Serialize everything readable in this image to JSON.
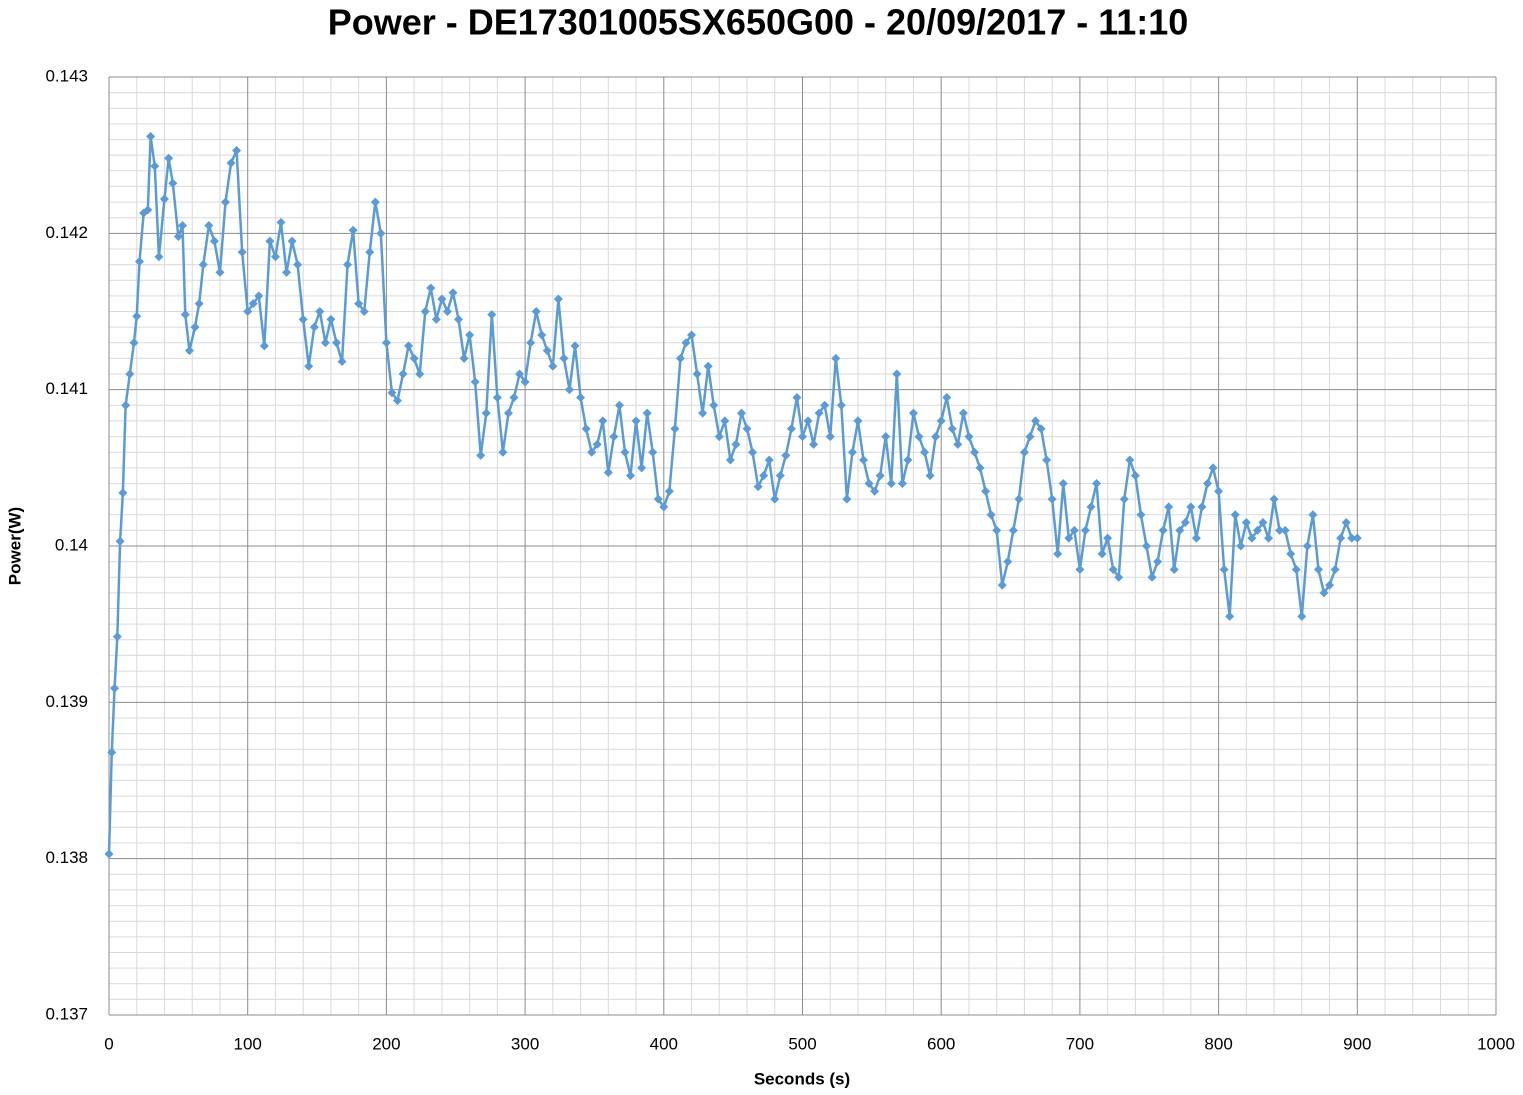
{
  "chart_data": {
    "type": "line",
    "title": "Power - DE17301005SX650G00 - 20/09/2017 - 11:10",
    "x_label": "Seconds (s)",
    "y_label": "Power(W)",
    "x": [
      0,
      2,
      4,
      6,
      8,
      10,
      12,
      15,
      18,
      20,
      22,
      25,
      28,
      30,
      33,
      36,
      40,
      43,
      46,
      50,
      53,
      55,
      58,
      62,
      65,
      68,
      72,
      76,
      80,
      84,
      88,
      92,
      96,
      100,
      104,
      108,
      112,
      116,
      120,
      124,
      128,
      132,
      136,
      140,
      144,
      148,
      152,
      156,
      160,
      164,
      168,
      172,
      176,
      180,
      184,
      188,
      192,
      196,
      200,
      204,
      208,
      212,
      216,
      220,
      224,
      228,
      232,
      236,
      240,
      244,
      248,
      252,
      256,
      260,
      264,
      268,
      272,
      276,
      280,
      284,
      288,
      292,
      296,
      300,
      304,
      308,
      312,
      316,
      320,
      324,
      328,
      332,
      336,
      340,
      344,
      348,
      352,
      356,
      360,
      364,
      368,
      372,
      376,
      380,
      384,
      388,
      392,
      396,
      400,
      404,
      408,
      412,
      416,
      420,
      424,
      428,
      432,
      436,
      440,
      444,
      448,
      452,
      456,
      460,
      464,
      468,
      472,
      476,
      480,
      484,
      488,
      492,
      496,
      500,
      504,
      508,
      512,
      516,
      520,
      524,
      528,
      532,
      536,
      540,
      544,
      548,
      552,
      556,
      560,
      564,
      568,
      572,
      576,
      580,
      584,
      588,
      592,
      596,
      600,
      604,
      608,
      612,
      616,
      620,
      624,
      628,
      632,
      636,
      640,
      644,
      648,
      652,
      656,
      660,
      664,
      668,
      672,
      676,
      680,
      684,
      688,
      692,
      696,
      700,
      704,
      708,
      712,
      716,
      720,
      724,
      728,
      732,
      736,
      740,
      744,
      748,
      752,
      756,
      760,
      764,
      768,
      772,
      776,
      780,
      784,
      788,
      792,
      796,
      800,
      804,
      808,
      812,
      816,
      820,
      824,
      828,
      832,
      836,
      840,
      844,
      848,
      852,
      856,
      860,
      864,
      868,
      872,
      876,
      880,
      884,
      888,
      892,
      896,
      900
    ],
    "series": [
      {
        "name": "Power(W)",
        "color": "#5b9bd5",
        "values": [
          0.13803,
          0.13868,
          0.13909,
          0.13942,
          0.14003,
          0.14034,
          0.1409,
          0.1411,
          0.1413,
          0.14147,
          0.14182,
          0.14213,
          0.14215,
          0.14262,
          0.14243,
          0.14185,
          0.14222,
          0.14248,
          0.14232,
          0.14198,
          0.14205,
          0.14148,
          0.14125,
          0.1414,
          0.14155,
          0.1418,
          0.14205,
          0.14195,
          0.14175,
          0.1422,
          0.14245,
          0.14253,
          0.14188,
          0.1415,
          0.14155,
          0.1416,
          0.14128,
          0.14195,
          0.14185,
          0.14207,
          0.14175,
          0.14195,
          0.1418,
          0.14145,
          0.14115,
          0.1414,
          0.1415,
          0.1413,
          0.14145,
          0.1413,
          0.14118,
          0.1418,
          0.14202,
          0.14155,
          0.1415,
          0.14188,
          0.1422,
          0.142,
          0.1413,
          0.14098,
          0.14093,
          0.1411,
          0.14128,
          0.1412,
          0.1411,
          0.1415,
          0.14165,
          0.14145,
          0.14158,
          0.1415,
          0.14162,
          0.14145,
          0.1412,
          0.14135,
          0.14105,
          0.14058,
          0.14085,
          0.14148,
          0.14095,
          0.1406,
          0.14085,
          0.14095,
          0.1411,
          0.14105,
          0.1413,
          0.1415,
          0.14135,
          0.14125,
          0.14115,
          0.14158,
          0.1412,
          0.141,
          0.14128,
          0.14095,
          0.14075,
          0.1406,
          0.14065,
          0.1408,
          0.14047,
          0.1407,
          0.1409,
          0.1406,
          0.14045,
          0.1408,
          0.1405,
          0.14085,
          0.1406,
          0.1403,
          0.14025,
          0.14035,
          0.14075,
          0.1412,
          0.1413,
          0.14135,
          0.1411,
          0.14085,
          0.14115,
          0.1409,
          0.1407,
          0.1408,
          0.14055,
          0.14065,
          0.14085,
          0.14075,
          0.1406,
          0.14038,
          0.14045,
          0.14055,
          0.1403,
          0.14045,
          0.14058,
          0.14075,
          0.14095,
          0.1407,
          0.1408,
          0.14065,
          0.14085,
          0.1409,
          0.1407,
          0.1412,
          0.1409,
          0.1403,
          0.1406,
          0.1408,
          0.14055,
          0.1404,
          0.14035,
          0.14045,
          0.1407,
          0.1404,
          0.1411,
          0.1404,
          0.14055,
          0.14085,
          0.1407,
          0.1406,
          0.14045,
          0.1407,
          0.1408,
          0.14095,
          0.14075,
          0.14065,
          0.14085,
          0.1407,
          0.1406,
          0.1405,
          0.14035,
          0.1402,
          0.1401,
          0.13975,
          0.1399,
          0.1401,
          0.1403,
          0.1406,
          0.1407,
          0.1408,
          0.14075,
          0.14055,
          0.1403,
          0.13995,
          0.1404,
          0.14005,
          0.1401,
          0.13985,
          0.1401,
          0.14025,
          0.1404,
          0.13995,
          0.14005,
          0.13985,
          0.1398,
          0.1403,
          0.14055,
          0.14045,
          0.1402,
          0.14,
          0.1398,
          0.1399,
          0.1401,
          0.14025,
          0.13985,
          0.1401,
          0.14015,
          0.14025,
          0.14005,
          0.14025,
          0.1404,
          0.1405,
          0.14035,
          0.13985,
          0.13955,
          0.1402,
          0.14,
          0.14015,
          0.14005,
          0.1401,
          0.14015,
          0.14005,
          0.1403,
          0.1401,
          0.1401,
          0.13995,
          0.13985,
          0.13955,
          0.14,
          0.1402,
          0.13985,
          0.1397,
          0.13975,
          0.13985,
          0.14005,
          0.14015,
          0.14005,
          0.14005
        ]
      }
    ],
    "xlim": [
      0,
      1000
    ],
    "xticks": [
      0,
      100,
      200,
      300,
      400,
      500,
      600,
      700,
      800,
      900,
      1000
    ],
    "ylim": [
      0.137,
      0.143
    ],
    "yticks": [
      0.137,
      0.138,
      0.139,
      0.14,
      0.141,
      0.142,
      0.143
    ],
    "grid": true,
    "markers": "diamond"
  }
}
